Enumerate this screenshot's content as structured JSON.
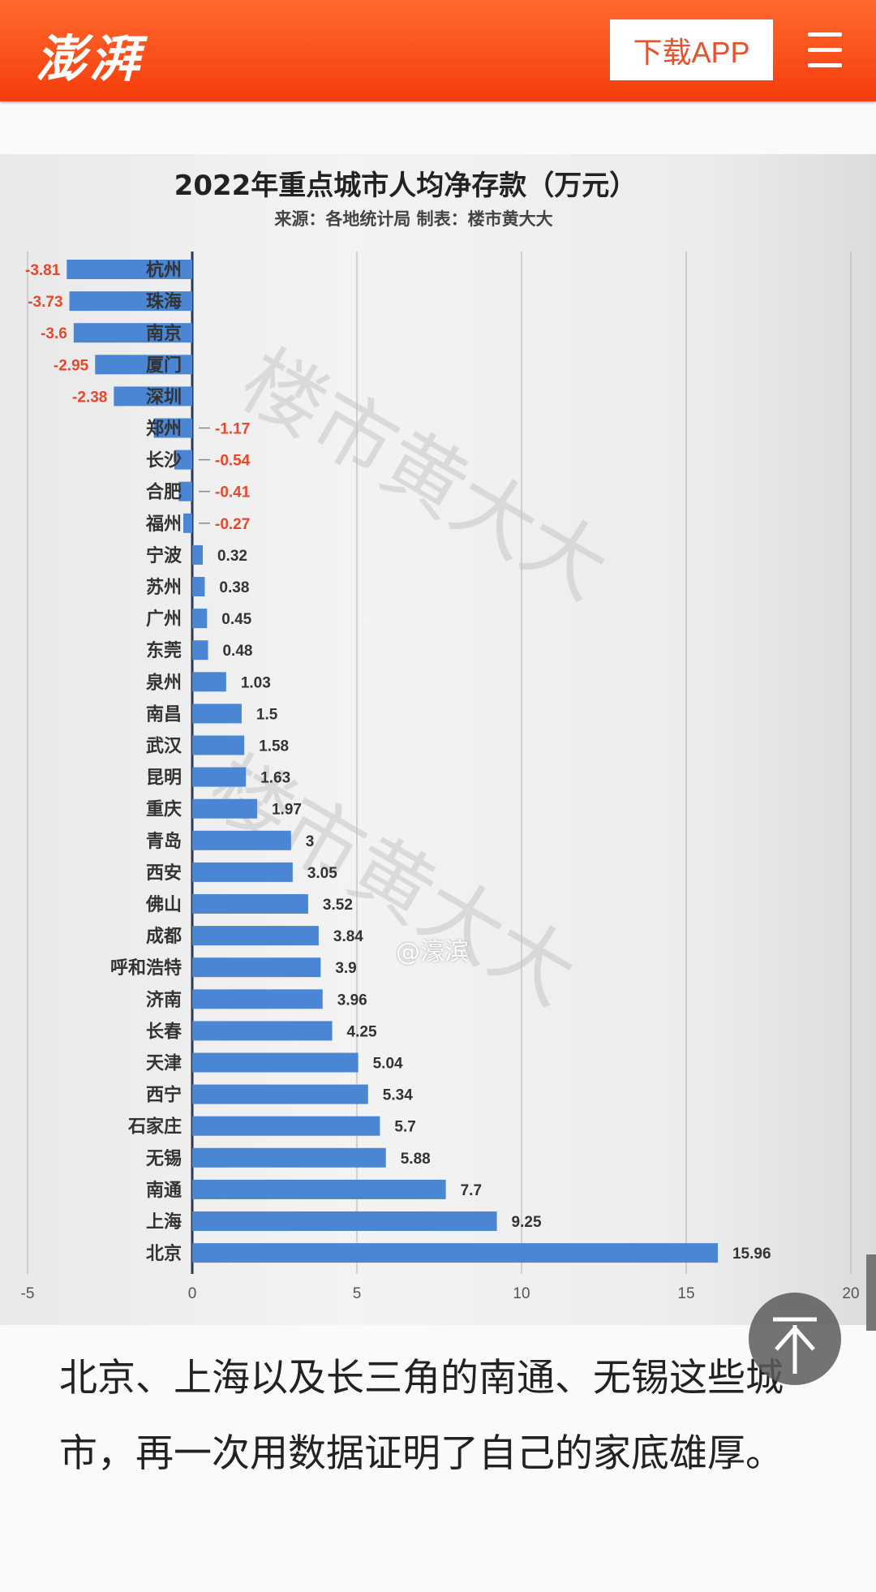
{
  "header": {
    "logo": "澎湃",
    "download_label": "下载APP",
    "menu_icon": "hamburger-menu-icon",
    "brand_color": "#f85220"
  },
  "chart_data": {
    "type": "bar",
    "orientation": "horizontal",
    "title": "2022年重点城市人均净存款（万元）",
    "subtitle": "来源：各地统计局 制表：楼市黄大大",
    "watermark": "楼市黄大大",
    "categories": [
      "杭州",
      "珠海",
      "南京",
      "厦门",
      "深圳",
      "郑州",
      "长沙",
      "合肥",
      "福州",
      "宁波",
      "苏州",
      "广州",
      "东莞",
      "泉州",
      "南昌",
      "武汉",
      "昆明",
      "重庆",
      "青岛",
      "西安",
      "佛山",
      "成都",
      "呼和浩特",
      "济南",
      "长春",
      "天津",
      "西宁",
      "石家庄",
      "无锡",
      "南通",
      "上海",
      "北京"
    ],
    "values": [
      -3.81,
      -3.73,
      -3.6,
      -2.95,
      -2.38,
      -1.17,
      -0.54,
      -0.41,
      -0.27,
      0.32,
      0.38,
      0.45,
      0.48,
      1.03,
      1.5,
      1.58,
      1.63,
      1.97,
      3,
      3.05,
      3.52,
      3.84,
      3.9,
      3.96,
      4.25,
      5.04,
      5.34,
      5.7,
      5.88,
      7.7,
      9.25,
      15.96
    ],
    "labels": [
      "-3.81",
      "-3.73",
      "-3.6",
      "-2.95",
      "-2.38",
      "-1.17",
      "-0.54",
      "-0.41",
      "-0.27",
      "0.32",
      "0.38",
      "0.45",
      "0.48",
      "1.03",
      "1.5",
      "1.58",
      "1.63",
      "1.97",
      "3",
      "3.05",
      "3.52",
      "3.84",
      "3.9",
      "3.96",
      "4.25",
      "5.04",
      "5.34",
      "5.7",
      "5.88",
      "7.7",
      "9.25",
      "15.96"
    ],
    "xlim": [
      -5,
      20
    ],
    "xticks": [
      "-5",
      "0",
      "5",
      "10",
      "15",
      "20"
    ],
    "grid": true,
    "bar_color": "#4a86d4",
    "negative_label_color": "#e8472c"
  },
  "image_watermark_user": "@濠滨",
  "article": {
    "paragraph": "北京、上海以及长三角的南通、无锡这些城市，再一次用数据证明了自己的家底雄厚。"
  },
  "back_to_top_icon": "arrow-up-to-top-icon"
}
